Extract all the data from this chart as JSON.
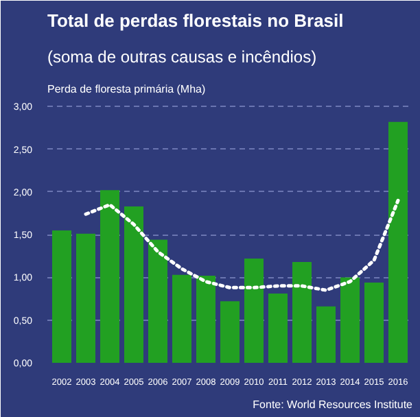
{
  "chart_data": {
    "type": "bar",
    "title": "Total de perdas florestais no Brasil",
    "subtitle": "(soma de outras causas e incêndios)",
    "ylabel": "Perda de floresta primária (Mha)",
    "categories": [
      "2002",
      "2003",
      "2004",
      "2005",
      "2006",
      "2007",
      "2008",
      "2009",
      "2010",
      "2011",
      "2012",
      "2013",
      "2014",
      "2015",
      "2016"
    ],
    "series": [
      {
        "color": "#22a022",
        "values": [
          1.55,
          1.51,
          2.02,
          1.83,
          1.44,
          1.03,
          1.02,
          0.72,
          1.22,
          0.81,
          1.18,
          0.66,
          1.0,
          0.94,
          2.82
        ]
      },
      {
        "type": "line",
        "color": "#ffffff",
        "line_style": "dotted",
        "values": [
          null,
          1.74,
          1.85,
          1.62,
          1.3,
          1.1,
          0.95,
          0.88,
          0.88,
          0.9,
          0.9,
          0.85,
          0.95,
          1.2,
          1.9
        ]
      }
    ],
    "ylim": [
      0,
      3.05
    ],
    "yticks": [
      {
        "value": 0,
        "label": "0,00"
      },
      {
        "value": 0.5,
        "label": "0,50"
      },
      {
        "value": 1,
        "label": "1,00"
      },
      {
        "value": 1.5,
        "label": "1,50"
      },
      {
        "value": 2,
        "label": "2,00"
      },
      {
        "value": 2.5,
        "label": "2,50"
      },
      {
        "value": 3,
        "label": "3,00"
      }
    ],
    "grid": "y",
    "annotations": [
      "Fonte: World Resources Institute"
    ]
  }
}
